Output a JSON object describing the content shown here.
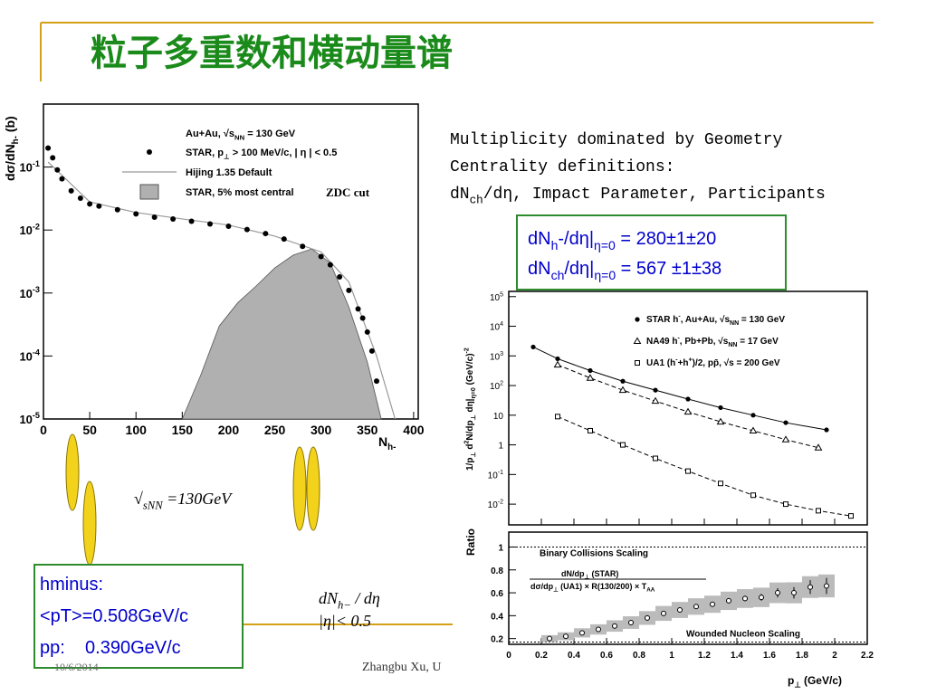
{
  "title": "粒子多重数和横动量谱",
  "notes": [
    "Multiplicity dominated by Geometry",
    "Centrality definitions:",
    [
      "dN",
      "ch",
      "/dη, Impact Parameter, Participants"
    ]
  ],
  "results_box": [
    [
      "dN",
      "h",
      "-/dη|",
      "η=0",
      "  = 280±1±20"
    ],
    [
      "dN",
      "ch",
      "/dη|",
      "η=0",
      "  = 567 ±1±38"
    ]
  ],
  "mean_pt_box": [
    "hminus:",
    "<pT>=0.508GeV/c",
    "pp:    0.390GeV/c"
  ],
  "energy": [
    "√",
    "s",
    "NN",
    " =130GeV"
  ],
  "acceptance": [
    [
      "dN",
      "h−",
      " / dη"
    ],
    "|η|< 0.5"
  ],
  "footer": {
    "date": "10/6/2014",
    "author": "Zhangbu Xu, U"
  },
  "multiplicity_plot": {
    "type": "scatter",
    "log_y": true,
    "xlabel": [
      "N",
      "h-"
    ],
    "ylabel": [
      "dσ/dN",
      "h-",
      " (b)"
    ],
    "xlim": [
      0,
      405
    ],
    "ylim": [
      1e-05,
      1
    ],
    "xticks": [
      0,
      50,
      100,
      150,
      200,
      250,
      300,
      350,
      400
    ],
    "yticks": [
      {
        "value": 0.1,
        "label": "10",
        "sup": "-1"
      },
      {
        "value": 0.01,
        "label": "10",
        "sup": "-2"
      },
      {
        "value": 0.001,
        "label": "10",
        "sup": "-3"
      },
      {
        "value": 0.0001,
        "label": "10",
        "sup": "-4"
      },
      {
        "value": 1e-05,
        "label": "10",
        "sup": "-5"
      }
    ],
    "legend_header": [
      "Au+Au, √s",
      "NN",
      " = 130 GeV"
    ],
    "annotation": "ZDC cut",
    "series": [
      {
        "name": [
          "STAR, p",
          "⊥",
          " > 100 MeV/c, | η | < 0.5"
        ],
        "color": "#000000",
        "x": [
          5,
          10,
          15,
          20,
          30,
          40,
          50,
          60,
          80,
          100,
          120,
          140,
          160,
          180,
          200,
          220,
          240,
          260,
          280,
          300,
          310,
          320,
          330,
          340,
          345,
          350,
          355,
          360
        ],
        "values": [
          0.2,
          0.14,
          0.09,
          0.065,
          0.042,
          0.032,
          0.026,
          0.024,
          0.021,
          0.018,
          0.016,
          0.015,
          0.0138,
          0.0125,
          0.0115,
          0.0102,
          0.0088,
          0.0072,
          0.0055,
          0.0038,
          0.0028,
          0.0018,
          0.0011,
          0.00056,
          0.0004,
          0.00024,
          0.00012,
          4e-05
        ]
      },
      {
        "name": [
          "Hijing 1.35 Default"
        ],
        "color": "#999999",
        "x": [
          5,
          50,
          100,
          150,
          200,
          250,
          300,
          330,
          360,
          380
        ],
        "values": [
          0.12,
          0.028,
          0.019,
          0.015,
          0.012,
          0.008,
          0.0045,
          0.0015,
          0.0001,
          1e-05
        ]
      },
      {
        "name": [
          "STAR, 5% most central"
        ],
        "color": "#b0b0b0",
        "x": [
          150,
          170,
          190,
          210,
          230,
          250,
          270,
          290,
          310,
          330,
          350,
          365
        ],
        "values": [
          1e-05,
          5e-05,
          0.0003,
          0.0007,
          0.0013,
          0.0025,
          0.004,
          0.005,
          0.003,
          0.0006,
          8e-05,
          1e-05
        ]
      }
    ]
  },
  "pt_plot": {
    "type": "scatter",
    "xlim": [
      0,
      2.2
    ],
    "xticks": [
      0,
      0.2,
      0.4,
      0.6,
      0.8,
      1,
      1.2,
      1.4,
      1.6,
      1.8,
      2,
      2.2
    ],
    "xlabel": [
      "p",
      "⊥",
      " (GeV/c)"
    ],
    "spectra": {
      "log_y": true,
      "ylim": [
        0.002,
        150000
      ],
      "ylabel": [
        "1/p",
        "⊥",
        " d",
        "2",
        "N/dp",
        "⊥",
        " dη|",
        "η=0",
        " (GeV/c)",
        "-2"
      ],
      "yticks": [
        {
          "value": 0.01,
          "label": "10",
          "sup": "-2"
        },
        {
          "value": 0.1,
          "label": "10",
          "sup": "-1"
        },
        1,
        10,
        {
          "value": 100,
          "label": "10",
          "sup": "2"
        },
        {
          "value": 1000,
          "label": "10",
          "sup": "3"
        },
        {
          "value": 10000,
          "label": "10",
          "sup": "4"
        },
        {
          "value": 100000,
          "label": "10",
          "sup": "5"
        }
      ],
      "series": [
        {
          "name": [
            "STAR h",
            "-",
            ", Au+Au, √s",
            "NN",
            " = 130 GeV"
          ],
          "color": "#000000",
          "marker": "circle",
          "x": [
            0.15,
            0.3,
            0.5,
            0.7,
            0.9,
            1.1,
            1.3,
            1.5,
            1.7,
            1.95
          ],
          "values": [
            2000,
            800,
            320,
            140,
            70,
            35,
            18,
            10,
            5.6,
            3.2
          ]
        },
        {
          "name": [
            "NA49 h",
            "-",
            ", Pb+Pb, √s",
            "NN",
            " = 17 GeV"
          ],
          "color": "#000000",
          "marker": "triangle",
          "x": [
            0.3,
            0.5,
            0.7,
            0.9,
            1.1,
            1.3,
            1.5,
            1.7,
            1.9
          ],
          "values": [
            500,
            180,
            70,
            30,
            13,
            6,
            3,
            1.5,
            0.8
          ]
        },
        {
          "name": [
            "UA1 (h",
            "-",
            "+h",
            "+",
            ")/2, pp̄, √s = 200 GeV"
          ],
          "color": "#000000",
          "marker": "square",
          "x": [
            0.3,
            0.5,
            0.7,
            0.9,
            1.1,
            1.3,
            1.5,
            1.7,
            1.9,
            2.1
          ],
          "values": [
            9,
            3,
            1,
            0.35,
            0.13,
            0.05,
            0.02,
            0.01,
            0.006,
            0.004
          ]
        }
      ]
    },
    "ratio": {
      "ylim": [
        0.15,
        1.13
      ],
      "yticks": [
        0.2,
        0.4,
        0.6,
        0.8,
        1
      ],
      "ylabel": "Ratio",
      "numerator": [
        "dN/dp",
        "⊥",
        " (STAR)"
      ],
      "denominator": [
        "dσ/dp",
        "⊥",
        " (UA1) × R(130/200) × T",
        "AA"
      ],
      "reference_lines": [
        {
          "value": 1,
          "label": "Binary Collisions Scaling"
        },
        {
          "value": 0.17,
          "label": "Wounded Nucleon Scaling"
        }
      ],
      "x": [
        0.25,
        0.35,
        0.45,
        0.55,
        0.65,
        0.75,
        0.85,
        0.95,
        1.05,
        1.15,
        1.25,
        1.35,
        1.45,
        1.55,
        1.65,
        1.75,
        1.85,
        1.95
      ],
      "values": [
        0.2,
        0.22,
        0.25,
        0.28,
        0.31,
        0.34,
        0.38,
        0.42,
        0.45,
        0.48,
        0.5,
        0.53,
        0.55,
        0.56,
        0.6,
        0.6,
        0.65,
        0.66
      ],
      "errors": [
        0.005,
        0.005,
        0.006,
        0.006,
        0.007,
        0.008,
        0.009,
        0.01,
        0.012,
        0.014,
        0.016,
        0.02,
        0.025,
        0.03,
        0.04,
        0.05,
        0.06,
        0.07
      ],
      "systematic": [
        0.03,
        0.035,
        0.04,
        0.045,
        0.05,
        0.055,
        0.06,
        0.065,
        0.07,
        0.072,
        0.075,
        0.08,
        0.082,
        0.085,
        0.09,
        0.092,
        0.095,
        0.1
      ]
    }
  }
}
